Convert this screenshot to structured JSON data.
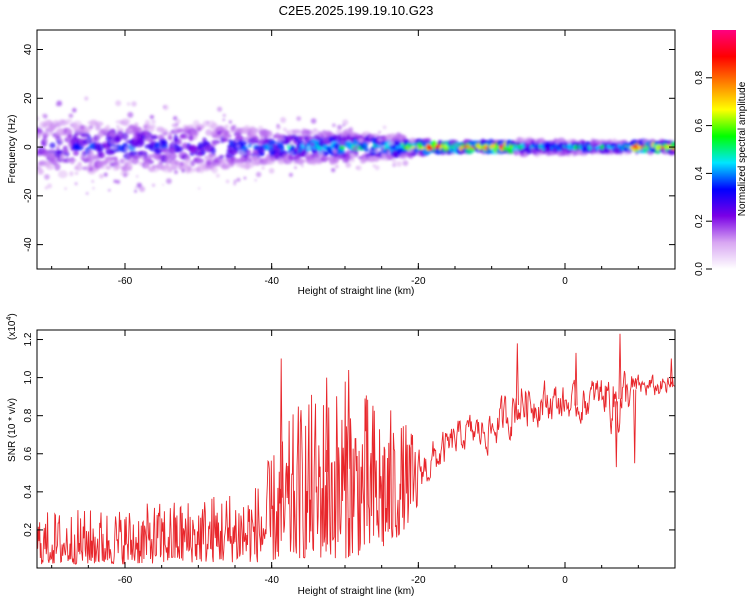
{
  "title": "C2E5.2025.199.19.10.G23",
  "chart_data": [
    {
      "type": "heatmap",
      "xlabel": "Height of straight line (km)",
      "ylabel": "Frequency (Hz)",
      "xlim": [
        -72,
        15
      ],
      "ylim": [
        -50,
        48
      ],
      "xticks": [
        -60,
        -40,
        -20,
        0
      ],
      "yticks": [
        -40,
        -20,
        0,
        20,
        40
      ],
      "grid": false,
      "colorbar": {
        "label": "Normalized spectral amplitude",
        "range": [
          0.0,
          1.0
        ],
        "ticks": [
          "0.0",
          "0.2",
          "0.4",
          "0.6",
          "0.8"
        ],
        "colormap": [
          "#ffffff",
          "#d8a6f2",
          "#7a00e6",
          "#0000ff",
          "#00e6ff",
          "#00ff00",
          "#ffff00",
          "#ff8000",
          "#ff0000",
          "#ff0080"
        ]
      },
      "band": [
        {
          "x": -72,
          "half_width": 12,
          "peak": 0.3
        },
        {
          "x": -60,
          "half_width": 11,
          "peak": 0.35
        },
        {
          "x": -50,
          "half_width": 10,
          "peak": 0.33
        },
        {
          "x": -40,
          "half_width": 7,
          "peak": 0.4
        },
        {
          "x": -30,
          "half_width": 6,
          "peak": 0.5
        },
        {
          "x": -22,
          "half_width": 4,
          "peak": 0.55
        },
        {
          "x": -18,
          "half_width": 2,
          "peak": 0.9
        },
        {
          "x": -8,
          "half_width": 2,
          "peak": 0.92
        },
        {
          "x": -5,
          "half_width": 3,
          "peak": 0.45
        },
        {
          "x": 8,
          "half_width": 2,
          "peak": 0.55
        },
        {
          "x": 10,
          "half_width": 2,
          "peak": 0.9
        },
        {
          "x": 15,
          "half_width": 2,
          "peak": 0.9
        }
      ]
    },
    {
      "type": "line",
      "xlabel": "Height of straight line (km)",
      "ylabel": "SNR (10 * v/v)",
      "y_multiplier": "(x10",
      "y_multiplier_exp": "4",
      "y_multiplier_close": ")",
      "xlim": [
        -72,
        15
      ],
      "ylim": [
        0,
        1.25
      ],
      "xticks": [
        -60,
        -40,
        -20,
        0
      ],
      "yticks": [
        "0.2",
        "0.4",
        "0.6",
        "0.8",
        "1.0",
        "1.2"
      ],
      "grid": false,
      "color": "#e8262b",
      "envelope": [
        {
          "x": -72,
          "low": 0.02,
          "high": 0.3
        },
        {
          "x": -60,
          "low": 0.02,
          "high": 0.32
        },
        {
          "x": -50,
          "low": 0.03,
          "high": 0.38
        },
        {
          "x": -42,
          "low": 0.03,
          "high": 0.45
        },
        {
          "x": -36,
          "low": 0.05,
          "high": 0.9
        },
        {
          "x": -30,
          "low": 0.05,
          "high": 1.0
        },
        {
          "x": -24,
          "low": 0.1,
          "high": 0.85
        },
        {
          "x": -20,
          "low": 0.3,
          "high": 0.7
        },
        {
          "x": -14,
          "low": 0.55,
          "high": 0.85
        },
        {
          "x": -10,
          "low": 0.55,
          "high": 0.9
        },
        {
          "x": -6,
          "low": 0.65,
          "high": 1.1
        },
        {
          "x": -2,
          "low": 0.7,
          "high": 1.05
        },
        {
          "x": 2,
          "low": 0.7,
          "high": 1.0
        },
        {
          "x": 5,
          "low": 0.75,
          "high": 1.1
        },
        {
          "x": 7,
          "low": 0.55,
          "high": 1.2
        },
        {
          "x": 10,
          "low": 0.85,
          "high": 1.05
        },
        {
          "x": 15,
          "low": 0.85,
          "high": 1.05
        }
      ],
      "spikes": [
        {
          "x": -38.7,
          "y": 1.1
        },
        {
          "x": -32.5,
          "y": 1.0
        },
        {
          "x": -29.5,
          "y": 1.04
        },
        {
          "x": -6.5,
          "y": 1.18
        },
        {
          "x": 1.5,
          "y": 1.13
        },
        {
          "x": 7.5,
          "y": 1.23
        },
        {
          "x": 14.5,
          "y": 1.1
        },
        {
          "x": 9.5,
          "y": 0.55
        },
        {
          "x": 7.0,
          "y": 0.53
        }
      ]
    }
  ]
}
